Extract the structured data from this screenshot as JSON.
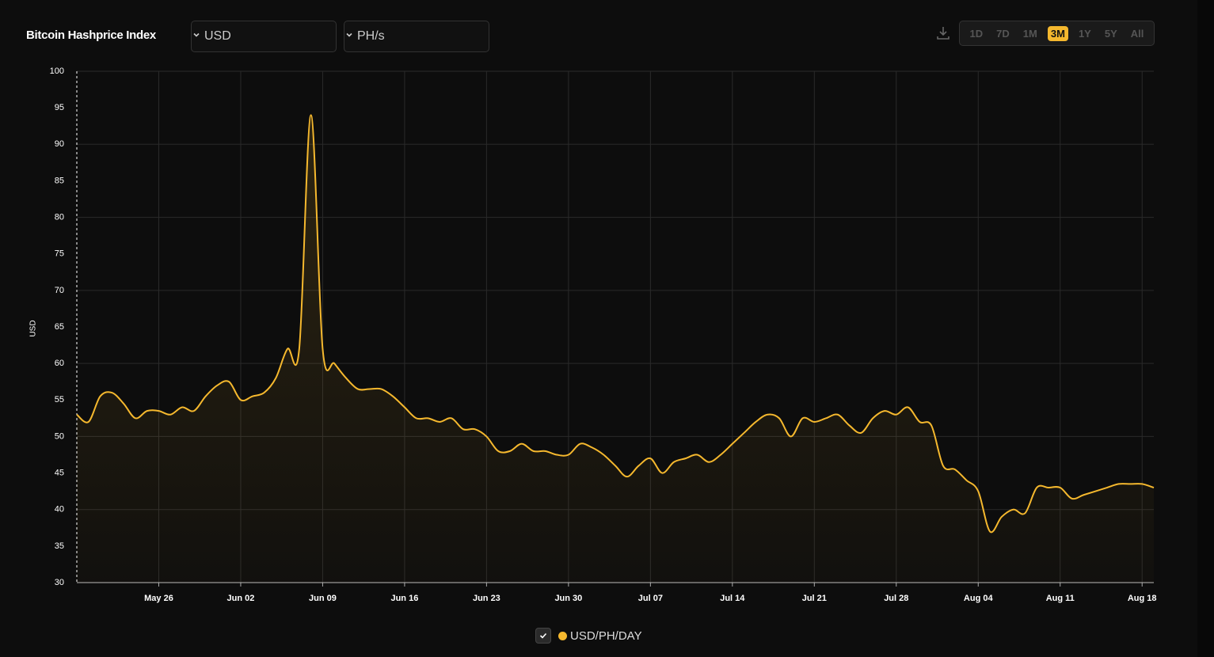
{
  "controls": {
    "currency": "USD",
    "unit": "PH/s"
  },
  "range_buttons": [
    {
      "label": "1D",
      "active": false
    },
    {
      "label": "7D",
      "active": false
    },
    {
      "label": "1M",
      "active": false
    },
    {
      "label": "3M",
      "active": true
    },
    {
      "label": "1Y",
      "active": false
    },
    {
      "label": "5Y",
      "active": false
    },
    {
      "label": "All",
      "active": false
    }
  ],
  "chart_data": {
    "type": "area",
    "title": "Bitcoin Hashprice Index",
    "y_label": "USD",
    "categories": [
      null,
      null,
      null,
      null,
      null,
      null,
      null,
      "May 26",
      null,
      null,
      null,
      null,
      null,
      null,
      "Jun 02",
      null,
      null,
      null,
      null,
      null,
      null,
      "Jun 09",
      null,
      null,
      null,
      null,
      null,
      null,
      "Jun 16",
      null,
      null,
      null,
      null,
      null,
      null,
      "Jun 23",
      null,
      null,
      null,
      null,
      null,
      null,
      "Jun 30",
      null,
      null,
      null,
      null,
      null,
      null,
      "Jul 07",
      null,
      null,
      null,
      null,
      null,
      null,
      "Jul 14",
      null,
      null,
      null,
      null,
      null,
      null,
      "Jul 21",
      null,
      null,
      null,
      null,
      null,
      null,
      "Jul 28",
      null,
      null,
      null,
      null,
      null,
      null,
      "Aug 04",
      null,
      null,
      null,
      null,
      null,
      null,
      "Aug 11",
      null,
      null,
      null,
      null,
      null,
      null,
      "Aug 18",
      null
    ],
    "series": [
      {
        "name": "USD/PH/DAY",
        "color": "#f5b82e",
        "values": [
          53,
          52,
          55.5,
          56,
          54.5,
          52.5,
          53.5,
          53.5,
          53,
          54,
          53.5,
          55.5,
          57,
          57.5,
          55,
          55.5,
          56,
          58,
          62,
          62,
          94,
          62,
          60,
          58,
          56.5,
          56.5,
          56.5,
          55.5,
          54,
          52.5,
          52.5,
          52,
          52.5,
          51,
          51,
          50,
          48,
          48,
          49,
          48,
          48,
          47.5,
          47.5,
          49,
          48.5,
          47.5,
          46,
          44.5,
          46,
          47,
          45,
          46.5,
          47,
          47.5,
          46.5,
          47.5,
          49,
          50.5,
          52,
          53,
          52.5,
          50,
          52.5,
          52,
          52.5,
          53,
          51.5,
          50.5,
          52.5,
          53.5,
          53,
          54,
          52,
          51.5,
          46,
          45.5,
          44,
          42.5,
          37,
          39,
          40,
          39.5,
          43,
          43,
          43,
          41.5,
          42,
          42.5,
          43,
          43.5,
          43.5,
          43.5,
          43
        ]
      }
    ],
    "ylim": [
      30,
      100
    ],
    "yticks": [
      30,
      35,
      40,
      45,
      50,
      55,
      60,
      65,
      70,
      75,
      80,
      85,
      90,
      95,
      100
    ],
    "grid": true
  }
}
